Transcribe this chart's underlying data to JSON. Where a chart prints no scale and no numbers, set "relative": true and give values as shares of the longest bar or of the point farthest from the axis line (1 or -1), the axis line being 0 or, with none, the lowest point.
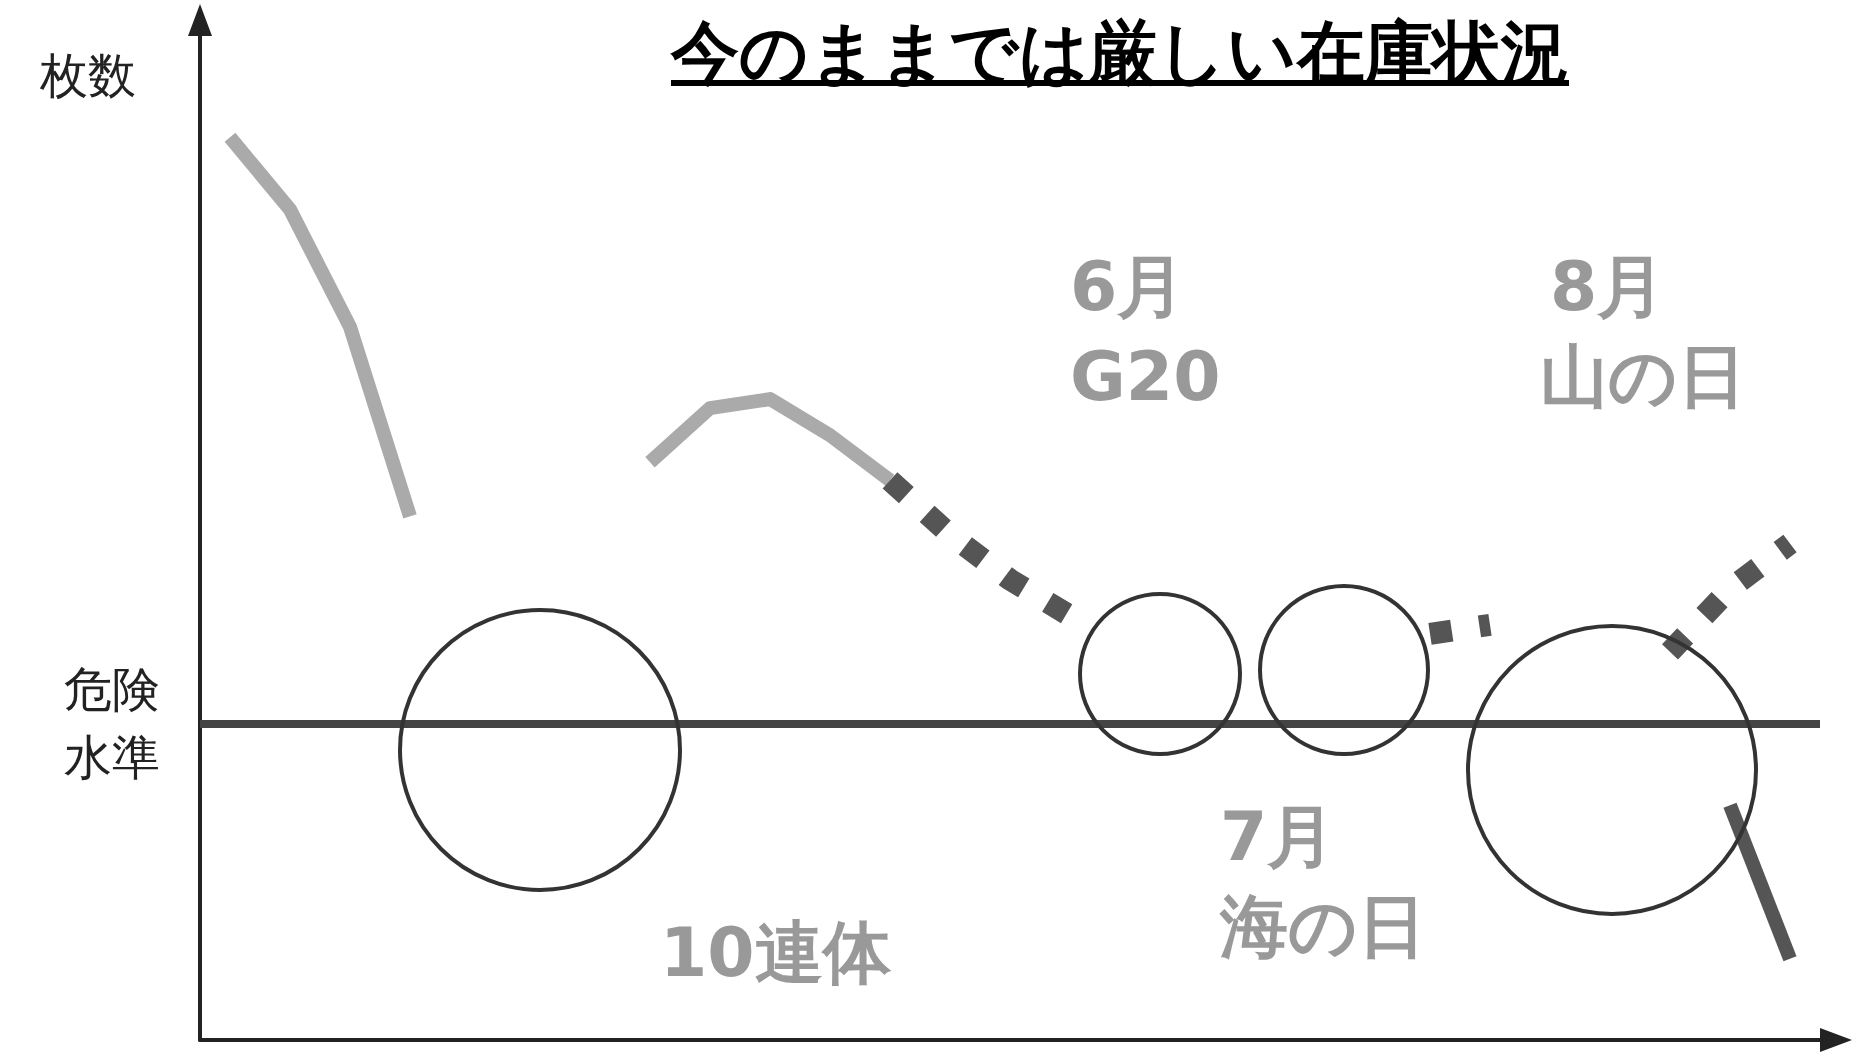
{
  "chart_data": {
    "type": "line",
    "title": "今のままでは厳しい在庫状況",
    "ylabel": "枚数",
    "relative": true,
    "grid": false,
    "marker": "none",
    "categories": [
      null,
      null,
      null,
      null,
      null,
      null,
      null,
      null,
      null,
      null,
      null,
      null,
      null,
      null,
      null,
      null,
      null,
      null,
      null,
      null,
      null,
      null,
      null,
      null,
      null,
      null,
      null
    ],
    "series": [
      {
        "color": "#aaaaaa",
        "line_style": "solid",
        "values": [
          1.0,
          0.92,
          0.79,
          0.58,
          null,
          null,
          null,
          null,
          null,
          null,
          null,
          null,
          null,
          null,
          null,
          null,
          null,
          null,
          null,
          null,
          null,
          null,
          null,
          null,
          null,
          null,
          null
        ]
      },
      {
        "color": "#aaaaaa",
        "line_style": "solid",
        "values": [
          null,
          null,
          null,
          null,
          null,
          null,
          null,
          0.64,
          0.7,
          0.71,
          0.67,
          0.62,
          null,
          null,
          null,
          null,
          null,
          null,
          null,
          null,
          null,
          null,
          null,
          null,
          null,
          null,
          null
        ]
      },
      {
        "color": "#555555",
        "line_style": "dotted",
        "values": [
          null,
          null,
          null,
          null,
          null,
          null,
          null,
          null,
          null,
          null,
          null,
          0.62,
          0.56,
          0.51,
          0.47,
          null,
          null,
          null,
          null,
          null,
          null,
          null,
          null,
          null,
          null,
          null,
          null
        ]
      },
      {
        "color": "#555555",
        "line_style": "dotted",
        "values": [
          null,
          null,
          null,
          null,
          null,
          null,
          null,
          null,
          null,
          null,
          null,
          null,
          null,
          null,
          null,
          null,
          null,
          null,
          null,
          null,
          0.45,
          0.46,
          null,
          null,
          null,
          null,
          null
        ]
      },
      {
        "color": "#555555",
        "line_style": "dotted",
        "values": [
          null,
          null,
          null,
          null,
          null,
          null,
          null,
          null,
          null,
          null,
          null,
          null,
          null,
          null,
          null,
          null,
          null,
          null,
          null,
          null,
          null,
          null,
          null,
          null,
          0.43,
          0.5,
          0.55
        ]
      },
      {
        "color": "#555555",
        "line_style": "solid",
        "values": [
          null,
          null,
          null,
          null,
          null,
          null,
          null,
          null,
          null,
          null,
          null,
          null,
          null,
          null,
          null,
          null,
          null,
          null,
          null,
          null,
          null,
          null,
          null,
          null,
          null,
          0.26,
          0.09
        ]
      }
    ],
    "ref_lines": [
      {
        "axis": "y",
        "value": 0.35,
        "label": "危険水準",
        "color": "#444444"
      }
    ],
    "annotations": [
      "10連体",
      "6月",
      "G20",
      "7月",
      "海の日",
      "8月",
      "山の日"
    ]
  }
}
